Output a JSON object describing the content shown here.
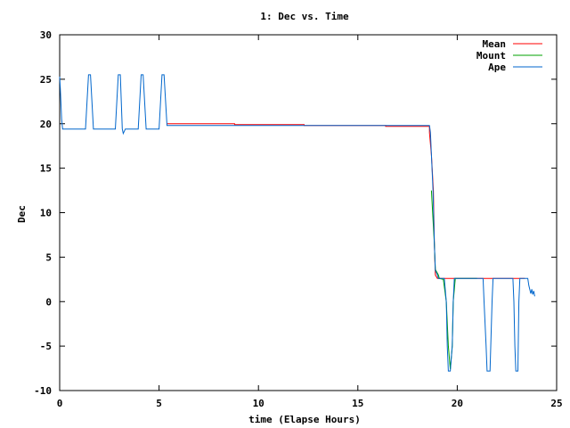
{
  "chart_data": {
    "type": "line",
    "title": "1: Dec vs. Time",
    "xlabel": "time (Elapse Hours)",
    "ylabel": "Dec",
    "xlim": [
      0,
      25
    ],
    "ylim": [
      -10,
      30
    ],
    "xticks": [
      0,
      5,
      10,
      15,
      20,
      25
    ],
    "yticks": [
      -10,
      -5,
      0,
      5,
      10,
      15,
      20,
      25,
      30
    ],
    "grid": false,
    "legend_position": "top-right",
    "series": [
      {
        "name": "Mean",
        "color": "#ff0000",
        "points": [
          [
            5.4,
            20.0
          ],
          [
            8.8,
            20.0
          ],
          [
            8.8,
            19.9
          ],
          [
            12.3,
            19.9
          ],
          [
            12.3,
            19.8
          ],
          [
            16.4,
            19.8
          ],
          [
            16.4,
            19.7
          ],
          [
            18.6,
            19.7
          ],
          [
            18.6,
            19.0
          ],
          [
            18.7,
            16.5
          ],
          [
            18.8,
            12.5
          ],
          [
            18.85,
            6.5
          ],
          [
            18.9,
            3.0
          ],
          [
            19.0,
            2.6
          ],
          [
            19.6,
            2.6
          ],
          [
            21.6,
            2.6
          ],
          [
            21.6,
            2.6
          ],
          [
            23.4,
            2.6
          ],
          [
            23.4,
            2.6
          ]
        ]
      },
      {
        "name": "Mount",
        "color": "#00a000",
        "points": [
          [
            18.7,
            12.5
          ],
          [
            18.85,
            6.5
          ],
          [
            18.9,
            3.6
          ],
          [
            19.05,
            3.0
          ],
          [
            19.1,
            2.6
          ],
          [
            19.3,
            2.5
          ],
          [
            19.45,
            0.0
          ],
          [
            19.55,
            -5.0
          ],
          [
            19.65,
            -7.6
          ],
          [
            19.75,
            -5.0
          ],
          [
            19.8,
            0.0
          ],
          [
            19.9,
            2.6
          ],
          [
            21.0,
            2.6
          ]
        ]
      },
      {
        "name": "Ape",
        "color": "#0066cc",
        "points": [
          [
            0.0,
            25.3
          ],
          [
            0.03,
            24.0
          ],
          [
            0.1,
            20.5
          ],
          [
            0.15,
            19.4
          ],
          [
            1.3,
            19.4
          ],
          [
            1.45,
            25.5
          ],
          [
            1.55,
            25.5
          ],
          [
            1.7,
            19.4
          ],
          [
            2.8,
            19.4
          ],
          [
            2.95,
            25.5
          ],
          [
            3.05,
            25.5
          ],
          [
            3.15,
            19.4
          ],
          [
            3.2,
            18.9
          ],
          [
            3.3,
            19.4
          ],
          [
            3.95,
            19.4
          ],
          [
            4.1,
            25.5
          ],
          [
            4.2,
            25.5
          ],
          [
            4.35,
            19.4
          ],
          [
            5.0,
            19.4
          ],
          [
            5.15,
            25.5
          ],
          [
            5.25,
            25.5
          ],
          [
            5.4,
            19.8
          ],
          [
            18.6,
            19.8
          ],
          [
            18.65,
            19.0
          ],
          [
            18.7,
            16.5
          ],
          [
            18.78,
            12.5
          ],
          [
            18.85,
            6.5
          ],
          [
            18.9,
            3.5
          ],
          [
            19.0,
            3.0
          ],
          [
            19.05,
            2.6
          ],
          [
            19.35,
            2.6
          ],
          [
            19.45,
            0.0
          ],
          [
            19.5,
            -5.0
          ],
          [
            19.55,
            -7.8
          ],
          [
            19.65,
            -7.8
          ],
          [
            19.75,
            -5.0
          ],
          [
            19.8,
            0.0
          ],
          [
            19.85,
            2.6
          ],
          [
            21.3,
            2.6
          ],
          [
            21.35,
            0.0
          ],
          [
            21.45,
            -5.0
          ],
          [
            21.5,
            -7.8
          ],
          [
            21.65,
            -7.8
          ],
          [
            21.75,
            0.0
          ],
          [
            21.8,
            2.6
          ],
          [
            22.8,
            2.6
          ],
          [
            22.85,
            0.0
          ],
          [
            22.9,
            -5.0
          ],
          [
            22.95,
            -7.8
          ],
          [
            23.05,
            -7.8
          ],
          [
            23.1,
            0.0
          ],
          [
            23.15,
            2.6
          ],
          [
            23.55,
            2.6
          ],
          [
            23.6,
            1.8
          ],
          [
            23.7,
            0.9
          ],
          [
            23.75,
            1.4
          ],
          [
            23.8,
            0.8
          ],
          [
            23.85,
            1.2
          ],
          [
            23.9,
            0.6
          ]
        ]
      }
    ]
  }
}
